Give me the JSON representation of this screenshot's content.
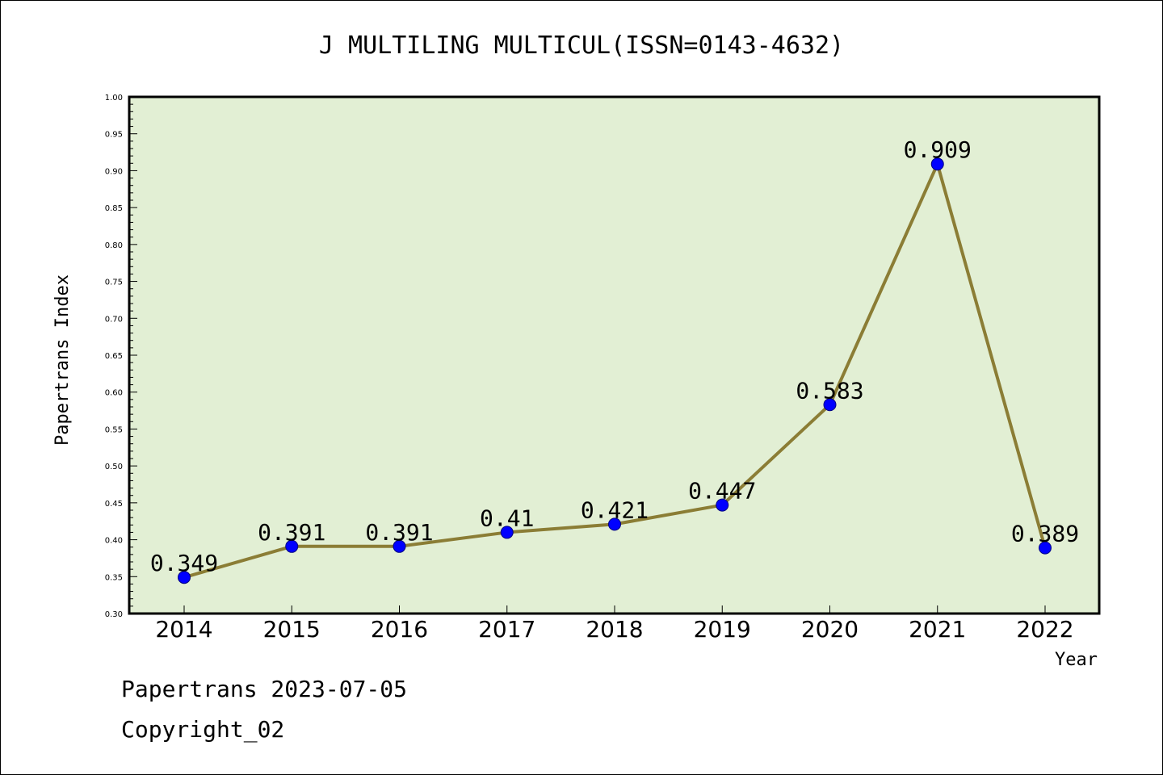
{
  "chart_data": {
    "type": "line",
    "title": "J MULTILING MULTICUL(ISSN=0143-4632)",
    "xlabel": "Year",
    "ylabel": "Papertrans Index",
    "categories": [
      "2014",
      "2015",
      "2016",
      "2017",
      "2018",
      "2019",
      "2020",
      "2021",
      "2022"
    ],
    "series": [
      {
        "values": [
          0.349,
          0.391,
          0.391,
          0.41,
          0.421,
          0.447,
          0.583,
          0.909,
          0.389
        ],
        "labels": [
          "0.349",
          "0.391",
          "0.391",
          "0.41",
          "0.421",
          "0.447",
          "0.583",
          "0.909",
          "0.389"
        ]
      }
    ],
    "ylim": [
      0.3,
      1.0
    ],
    "yticks": [
      "0.30",
      "0.35",
      "0.40",
      "0.45",
      "0.50",
      "0.55",
      "0.60",
      "0.65",
      "0.70",
      "0.75",
      "0.80",
      "0.85",
      "0.90",
      "0.95",
      "1.00"
    ],
    "grid": false,
    "legend": "none"
  },
  "footer": {
    "line1": "Papertrans 2023-07-05",
    "line2": "Copyright_02"
  },
  "colors": {
    "plot_background": "#e2efd4",
    "line": "#8b7d35",
    "marker": "#0000ff",
    "axis": "#000000"
  }
}
